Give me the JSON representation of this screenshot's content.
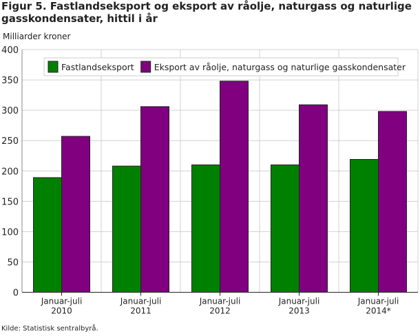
{
  "chart_data": {
    "type": "bar",
    "title": "Figur 5. Fastlandseksport og eksport av råolje, naturgass og naturlige gasskondensater, hittil i år",
    "ylabel": "Milliarder kroner",
    "xlabel": "",
    "ylim": [
      0,
      400
    ],
    "yticks": [
      0,
      50,
      100,
      150,
      200,
      250,
      300,
      350,
      400
    ],
    "grid": true,
    "legend_position": "top",
    "categories": [
      [
        "Januar-juli",
        "2010"
      ],
      [
        "Januar-juli",
        "2011"
      ],
      [
        "Januar-juli",
        "2012"
      ],
      [
        "Januar-juli",
        "2013"
      ],
      [
        "Januar-juli",
        "2014*"
      ]
    ],
    "series": [
      {
        "name": "Fastlandseksport",
        "color": "#008000",
        "values": [
          189,
          208,
          210,
          210,
          219
        ]
      },
      {
        "name": "Eksport av råolje, naturgass og naturlige gasskondensater",
        "color": "#800080",
        "values": [
          257,
          306,
          348,
          309,
          298
        ]
      }
    ],
    "source": "Kilde: Statistisk sentralbyrå."
  }
}
